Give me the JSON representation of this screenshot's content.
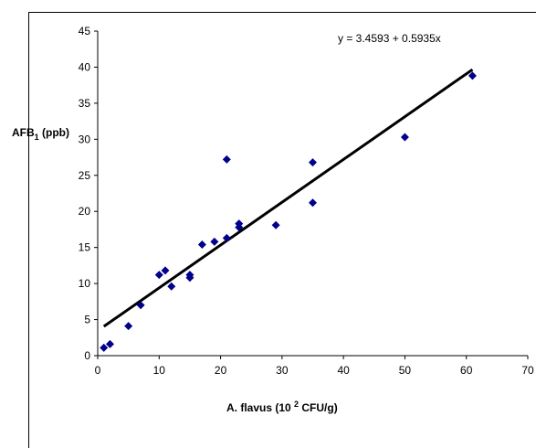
{
  "chart_data": {
    "type": "scatter",
    "title": "",
    "xlabel": "A. flavus (10 2 CFU/g)",
    "xlabel_parts": {
      "pre": "A. flavus (10 ",
      "sup": "2",
      "post": " CFU/g)"
    },
    "ylabel": "AFB1 (ppb)",
    "ylabel_parts": {
      "pre": "AFB",
      "sub": "1",
      "post": " (ppb)"
    },
    "xlim": [
      0,
      70
    ],
    "ylim": [
      0,
      45
    ],
    "x_ticks": [
      0,
      10,
      20,
      30,
      40,
      50,
      60,
      70
    ],
    "y_ticks": [
      0,
      5,
      10,
      15,
      20,
      25,
      30,
      35,
      40,
      45
    ],
    "grid": false,
    "legend": "none",
    "marker_color": "#00008B",
    "trendline": {
      "equation": "y = 3.4593 + 0.5935x",
      "intercept": 3.4593,
      "slope": 0.5935,
      "x_range": [
        1,
        61
      ]
    },
    "series": [
      {
        "points": [
          {
            "x": 1,
            "y": 1.1
          },
          {
            "x": 2,
            "y": 1.6
          },
          {
            "x": 5,
            "y": 4.1
          },
          {
            "x": 7,
            "y": 7.0
          },
          {
            "x": 10,
            "y": 11.2
          },
          {
            "x": 11,
            "y": 11.8
          },
          {
            "x": 12,
            "y": 9.6
          },
          {
            "x": 15,
            "y": 10.8
          },
          {
            "x": 15,
            "y": 11.2
          },
          {
            "x": 17,
            "y": 15.4
          },
          {
            "x": 19,
            "y": 15.8
          },
          {
            "x": 21,
            "y": 16.3
          },
          {
            "x": 21,
            "y": 27.2
          },
          {
            "x": 23,
            "y": 17.8
          },
          {
            "x": 23,
            "y": 18.3
          },
          {
            "x": 29,
            "y": 18.1
          },
          {
            "x": 35,
            "y": 21.2
          },
          {
            "x": 35,
            "y": 26.8
          },
          {
            "x": 50,
            "y": 30.3
          },
          {
            "x": 61,
            "y": 38.8
          }
        ]
      }
    ]
  }
}
